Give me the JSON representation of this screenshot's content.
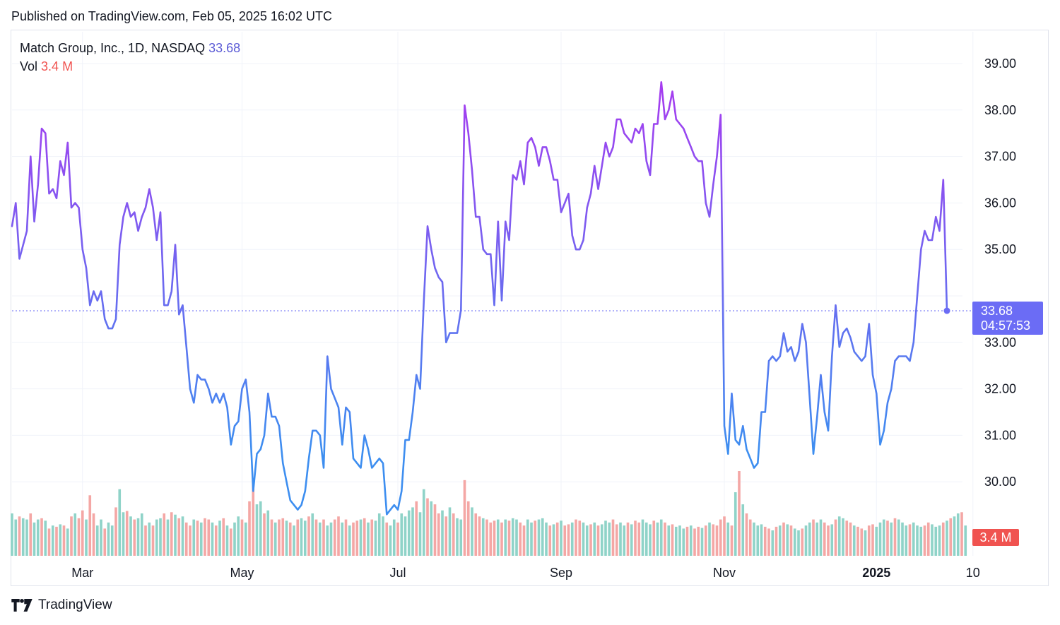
{
  "header": {
    "published": "Published on TradingView.com, Feb 05, 2025 16:02 UTC"
  },
  "legend": {
    "symbol": "Match Group, Inc., 1D, NASDAQ",
    "price": "33.68",
    "vol_label": "Vol",
    "vol_value": "3.4 M"
  },
  "footer": {
    "brand": "TradingView",
    "logo_icon": "tradingview-logo-icon"
  },
  "colors": {
    "line_low": "#3d8ef0",
    "line_high": "#a63cf0",
    "vol_up": "#8fd3c8",
    "vol_down": "#f4a7a5",
    "price_tag": "#6b6cf5",
    "vol_tag": "#f05350"
  },
  "chart_data": {
    "type": "line",
    "symbol": "Match Group, Inc.",
    "interval": "1D",
    "exchange": "NASDAQ",
    "y_ticks": [
      "30.00",
      "31.00",
      "32.00",
      "33.00",
      "34.00",
      "35.00",
      "36.00",
      "37.00",
      "38.00",
      "39.00"
    ],
    "ylim": [
      28.4,
      39.8
    ],
    "x_ticks": [
      {
        "label": "Mar",
        "index": 19,
        "bold": false
      },
      {
        "label": "May",
        "index": 62,
        "bold": false
      },
      {
        "label": "Jul",
        "index": 104,
        "bold": false
      },
      {
        "label": "Sep",
        "index": 148,
        "bold": false
      },
      {
        "label": "Nov",
        "index": 192,
        "bold": false
      },
      {
        "label": "2025",
        "index": 233,
        "bold": true
      },
      {
        "label": "10",
        "index": 259,
        "bold": false
      }
    ],
    "last_price": {
      "value": 33.68,
      "label": "33.68",
      "countdown": "04:57:53"
    },
    "last_volume": {
      "label": "3.4 M"
    },
    "closes": [
      35.5,
      36.0,
      34.8,
      35.1,
      35.4,
      37.0,
      35.6,
      36.4,
      37.6,
      37.5,
      36.2,
      36.3,
      36.1,
      36.9,
      36.6,
      37.3,
      35.9,
      36.0,
      35.9,
      35.0,
      34.6,
      33.8,
      34.1,
      33.9,
      34.1,
      33.5,
      33.3,
      33.3,
      33.5,
      35.1,
      35.7,
      36.0,
      35.7,
      35.8,
      35.4,
      35.7,
      35.9,
      36.3,
      35.9,
      35.2,
      35.8,
      33.8,
      33.8,
      34.1,
      35.1,
      33.6,
      33.8,
      32.9,
      32.0,
      31.7,
      32.3,
      32.2,
      32.2,
      32.0,
      31.7,
      31.9,
      31.7,
      31.9,
      31.6,
      30.8,
      31.2,
      31.3,
      32.0,
      32.2,
      31.5,
      29.8,
      30.6,
      30.7,
      31.0,
      31.9,
      31.4,
      31.4,
      31.2,
      30.4,
      30.0,
      29.6,
      29.5,
      29.4,
      29.5,
      29.8,
      30.5,
      31.1,
      31.1,
      31.0,
      30.3,
      32.7,
      32.0,
      31.8,
      31.6,
      30.8,
      31.6,
      31.5,
      30.5,
      30.4,
      30.3,
      31.0,
      30.7,
      30.3,
      30.4,
      30.5,
      30.4,
      29.3,
      29.4,
      29.5,
      29.4,
      29.8,
      30.9,
      30.9,
      31.5,
      32.3,
      32.0,
      33.9,
      35.5,
      35.0,
      34.6,
      34.4,
      34.3,
      33.0,
      33.2,
      33.2,
      33.2,
      33.7,
      38.1,
      37.5,
      36.7,
      35.7,
      35.7,
      35.0,
      34.9,
      34.9,
      33.8,
      35.6,
      33.9,
      35.6,
      35.2,
      36.6,
      36.5,
      36.9,
      36.4,
      37.3,
      37.4,
      37.2,
      36.8,
      37.2,
      37.2,
      36.9,
      36.5,
      36.5,
      35.8,
      36.0,
      36.2,
      35.3,
      35.0,
      35.0,
      35.2,
      35.9,
      36.2,
      36.8,
      36.3,
      36.8,
      37.3,
      37.0,
      37.2,
      37.8,
      37.8,
      37.5,
      37.4,
      37.3,
      37.6,
      37.5,
      37.7,
      36.9,
      36.6,
      37.7,
      37.7,
      38.6,
      37.8,
      38.0,
      38.4,
      37.8,
      37.7,
      37.6,
      37.4,
      37.2,
      37.0,
      36.9,
      36.9,
      36.0,
      35.7,
      36.4,
      37.0,
      37.9,
      31.2,
      30.6,
      31.9,
      30.9,
      30.8,
      31.2,
      30.7,
      30.5,
      30.3,
      30.4,
      31.5,
      31.5,
      32.6,
      32.7,
      32.6,
      32.7,
      33.2,
      32.8,
      32.9,
      32.6,
      32.8,
      33.4,
      33.0,
      31.8,
      30.6,
      31.4,
      32.3,
      31.5,
      31.1,
      32.7,
      33.8,
      32.9,
      33.2,
      33.3,
      33.1,
      32.8,
      32.7,
      32.6,
      32.7,
      33.4,
      32.3,
      31.9,
      30.8,
      31.1,
      31.7,
      32.0,
      32.6,
      32.7,
      32.7,
      32.7,
      32.6,
      33.0,
      34.0,
      35.0,
      35.4,
      35.2,
      35.2,
      35.7,
      35.4,
      36.5,
      33.68
    ],
    "volumes": [
      0.7,
      0.6,
      0.65,
      0.62,
      0.6,
      0.7,
      0.55,
      0.6,
      0.62,
      0.58,
      0.45,
      0.5,
      0.48,
      0.52,
      0.5,
      0.45,
      0.65,
      0.7,
      0.62,
      0.75,
      0.6,
      1.0,
      0.7,
      0.5,
      0.6,
      0.45,
      0.55,
      0.5,
      0.8,
      1.1,
      0.72,
      0.74,
      0.65,
      0.6,
      0.62,
      0.7,
      0.5,
      0.55,
      0.5,
      0.6,
      0.62,
      0.7,
      0.6,
      0.72,
      0.68,
      0.62,
      0.65,
      0.55,
      0.5,
      0.6,
      0.58,
      0.55,
      0.62,
      0.6,
      0.55,
      0.5,
      0.58,
      0.62,
      0.5,
      0.45,
      0.55,
      0.65,
      0.6,
      0.55,
      0.9,
      1.25,
      0.85,
      0.9,
      0.7,
      0.75,
      0.6,
      0.55,
      0.6,
      0.62,
      0.58,
      0.55,
      0.5,
      0.6,
      0.62,
      0.58,
      0.65,
      0.7,
      0.6,
      0.55,
      0.6,
      0.5,
      0.55,
      0.6,
      0.65,
      0.55,
      0.6,
      0.5,
      0.55,
      0.58,
      0.6,
      0.62,
      0.55,
      0.6,
      0.58,
      0.7,
      0.65,
      0.55,
      0.5,
      0.6,
      0.55,
      0.7,
      0.65,
      0.75,
      0.8,
      0.9,
      0.72,
      1.1,
      0.95,
      0.9,
      0.85,
      0.7,
      0.75,
      0.65,
      0.8,
      0.7,
      0.62,
      0.6,
      1.25,
      0.9,
      0.8,
      0.7,
      0.65,
      0.62,
      0.6,
      0.55,
      0.58,
      0.6,
      0.55,
      0.6,
      0.58,
      0.62,
      0.6,
      0.55,
      0.5,
      0.6,
      0.55,
      0.58,
      0.6,
      0.62,
      0.55,
      0.5,
      0.52,
      0.55,
      0.58,
      0.5,
      0.52,
      0.55,
      0.6,
      0.58,
      0.55,
      0.5,
      0.52,
      0.55,
      0.5,
      0.52,
      0.58,
      0.55,
      0.6,
      0.52,
      0.55,
      0.5,
      0.55,
      0.52,
      0.58,
      0.55,
      0.6,
      0.55,
      0.52,
      0.58,
      0.55,
      0.6,
      0.55,
      0.5,
      0.52,
      0.48,
      0.5,
      0.45,
      0.48,
      0.5,
      0.45,
      0.48,
      0.46,
      0.5,
      0.55,
      0.52,
      0.5,
      0.6,
      0.65,
      0.55,
      0.5,
      1.05,
      1.4,
      0.85,
      0.7,
      0.6,
      0.55,
      0.5,
      0.52,
      0.48,
      0.45,
      0.42,
      0.48,
      0.5,
      0.55,
      0.52,
      0.5,
      0.45,
      0.42,
      0.45,
      0.5,
      0.55,
      0.6,
      0.55,
      0.6,
      0.55,
      0.5,
      0.52,
      0.6,
      0.65,
      0.62,
      0.58,
      0.55,
      0.5,
      0.48,
      0.45,
      0.42,
      0.5,
      0.52,
      0.48,
      0.55,
      0.6,
      0.58,
      0.55,
      0.62,
      0.6,
      0.55,
      0.5,
      0.52,
      0.55,
      0.5,
      0.48,
      0.5,
      0.55,
      0.52,
      0.48,
      0.5,
      0.55,
      0.58,
      0.62,
      0.65,
      0.7,
      0.72,
      0.5
    ],
    "volumes_up": [
      1,
      1,
      0,
      1,
      1,
      0,
      1,
      1,
      0,
      1,
      0,
      1,
      0,
      1,
      0,
      1,
      0,
      1,
      0,
      0,
      1,
      0,
      0,
      1,
      1,
      0,
      1,
      1,
      0,
      1,
      1,
      0,
      1,
      0,
      1,
      1,
      0,
      1,
      0,
      1,
      1,
      0,
      1,
      0,
      1,
      0,
      1,
      0,
      0,
      1,
      0,
      1,
      0,
      0,
      1,
      0,
      1,
      0,
      1,
      0,
      1,
      1,
      0,
      1,
      0,
      0,
      1,
      1,
      0,
      1,
      0,
      1,
      0,
      0,
      1,
      0,
      1,
      0,
      1,
      1,
      0,
      1,
      0,
      1,
      0,
      1,
      1,
      0,
      0,
      1,
      0,
      1,
      0,
      0,
      1,
      0,
      1,
      0,
      1,
      1,
      1,
      0,
      1,
      1,
      0,
      1,
      1,
      1,
      1,
      0,
      1,
      1,
      0,
      1,
      0,
      0,
      1,
      0,
      1,
      0,
      1,
      1,
      0,
      0,
      1,
      0,
      0,
      1,
      0,
      0,
      0,
      1,
      0,
      1,
      0,
      1,
      1,
      0,
      0,
      1,
      1,
      0,
      1,
      1,
      1,
      0,
      1,
      0,
      1,
      0,
      0,
      1,
      0,
      0,
      1,
      1,
      0,
      1,
      0,
      1,
      1,
      1,
      0,
      0,
      1,
      1,
      0,
      1,
      0,
      0,
      1,
      1,
      1,
      0,
      1,
      1,
      0,
      1,
      0,
      1,
      1,
      1,
      0,
      1,
      0,
      0,
      1,
      0,
      1,
      0,
      0,
      0,
      0,
      1,
      0,
      1,
      0,
      1,
      0,
      0,
      1,
      1,
      1,
      0,
      0,
      1,
      0,
      1,
      0,
      1,
      0,
      1,
      1,
      0,
      1,
      1,
      0,
      1,
      1,
      0,
      0,
      1,
      0,
      1,
      1,
      0,
      0,
      1,
      0,
      0,
      1,
      0,
      0,
      1,
      1,
      1,
      0,
      1,
      0,
      1,
      1,
      1,
      0,
      1,
      1,
      1,
      0,
      0,
      1,
      1,
      1,
      0,
      1,
      0,
      1,
      1,
      0,
      1,
      1,
      0
    ]
  }
}
